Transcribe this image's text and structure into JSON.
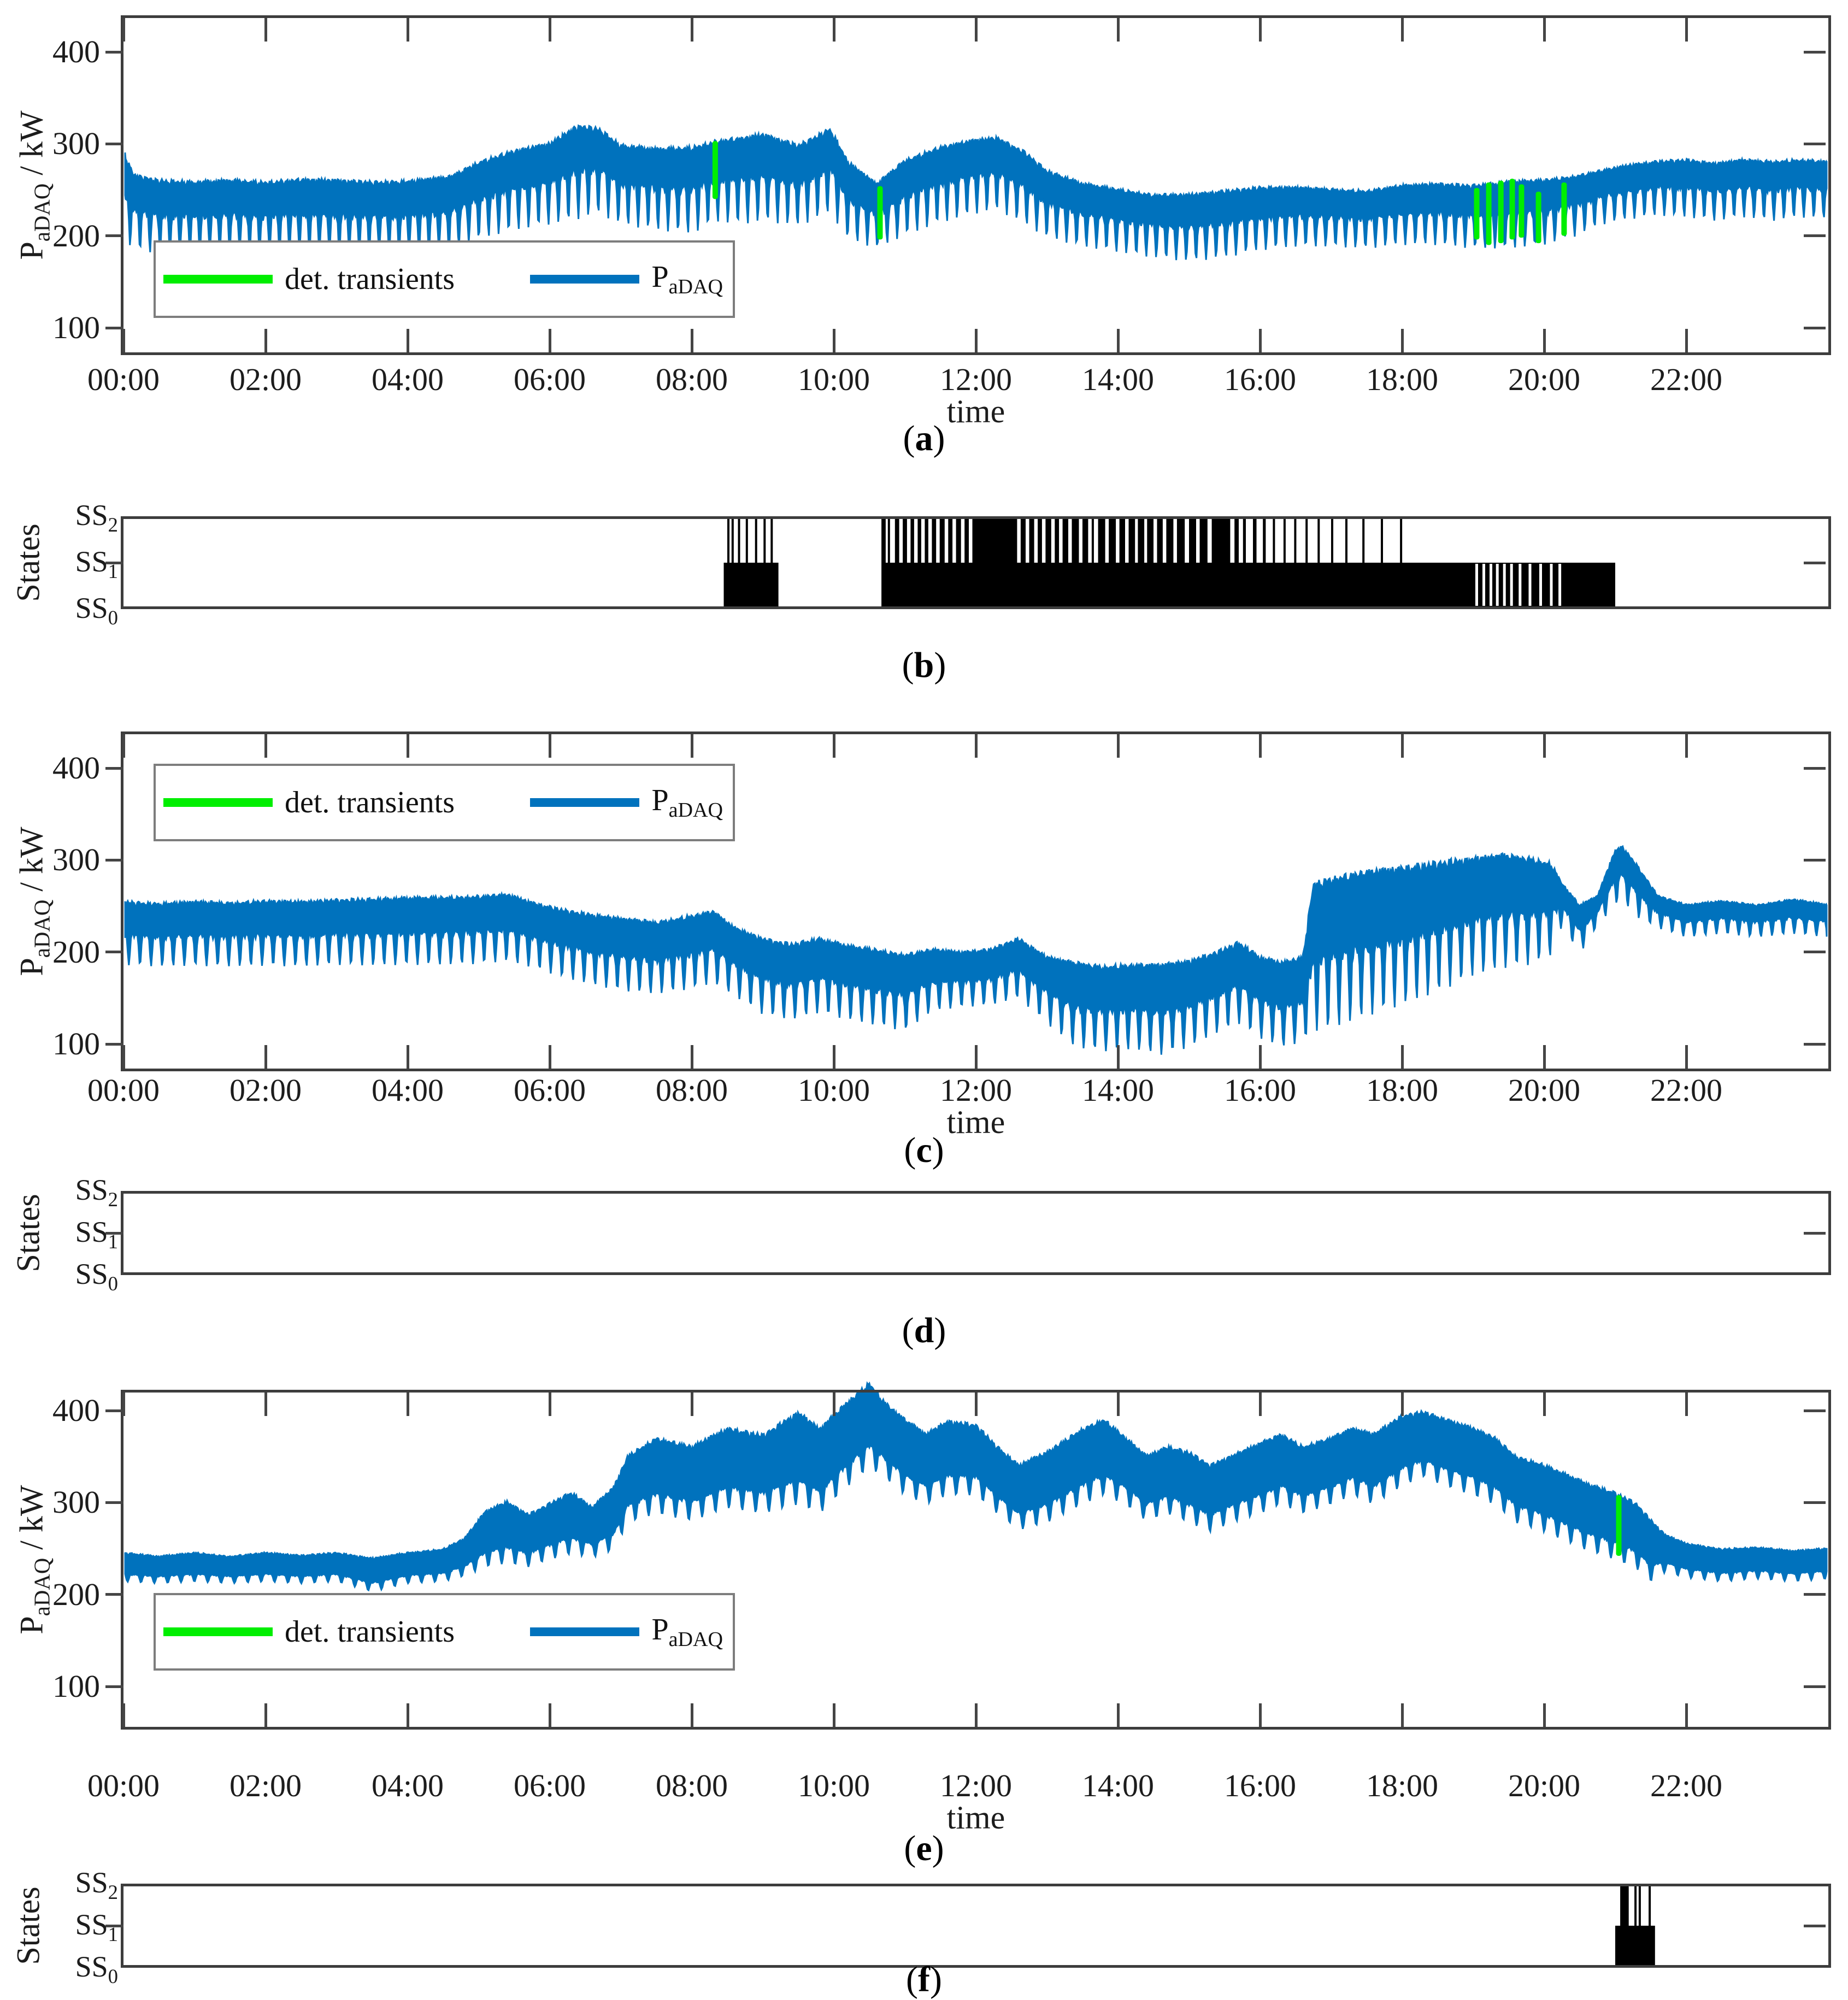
{
  "time_axis": {
    "label": "time",
    "tick_hours": [
      0,
      2,
      4,
      6,
      8,
      10,
      12,
      14,
      16,
      18,
      20,
      22
    ],
    "tick_labels": [
      "00:00",
      "02:00",
      "04:00",
      "06:00",
      "08:00",
      "10:00",
      "12:00",
      "14:00",
      "16:00",
      "18:00",
      "20:00",
      "22:00"
    ],
    "range_hours": [
      0,
      24
    ]
  },
  "power_axis": {
    "label_main": "P",
    "label_sub": "aDAQ",
    "label_rest": " / kW",
    "ticks": [
      400,
      300,
      200,
      100
    ],
    "ylim": [
      70,
      440
    ]
  },
  "states_axis": {
    "label": "States",
    "levels": [
      {
        "base": "SS",
        "sub": "2"
      },
      {
        "base": "SS",
        "sub": "1"
      },
      {
        "base": "SS",
        "sub": "0"
      }
    ]
  },
  "legend": {
    "transients_label": "det. transients",
    "signal_main": "P",
    "signal_sub": "aDAQ"
  },
  "colors": {
    "signal_blue": "#0072BD",
    "transient_green": "#00EE00",
    "state_black": "#000000",
    "axis_gray": "#3d3d3d"
  },
  "chart_data": [
    {
      "id": "a",
      "type": "line",
      "caption": "a",
      "legend_position": "bottom-left",
      "ylabel": "P_aDAQ / kW",
      "xlabel": "time",
      "grid": false,
      "band_fill": 0.45,
      "comb_freq": 44.8,
      "envelope": [
        [
          0,
          195,
          292
        ],
        [
          0.15,
          185,
          268
        ],
        [
          0.5,
          180,
          262
        ],
        [
          1,
          180,
          260
        ],
        [
          1.5,
          182,
          262
        ],
        [
          2,
          180,
          260
        ],
        [
          2.5,
          182,
          263
        ],
        [
          3,
          180,
          262
        ],
        [
          3.5,
          181,
          260
        ],
        [
          4,
          180,
          261
        ],
        [
          4.6,
          184,
          266
        ],
        [
          5,
          196,
          282
        ],
        [
          5.5,
          206,
          294
        ],
        [
          6,
          212,
          302
        ],
        [
          6.4,
          218,
          322
        ],
        [
          6.7,
          224,
          318
        ],
        [
          7,
          212,
          300
        ],
        [
          7.5,
          206,
          296
        ],
        [
          8,
          202,
          298
        ],
        [
          8.35,
          215,
          305
        ],
        [
          8.7,
          212,
          308
        ],
        [
          9,
          216,
          312
        ],
        [
          9.5,
          210,
          300
        ],
        [
          9.95,
          225,
          318
        ],
        [
          10.2,
          196,
          282
        ],
        [
          10.6,
          186,
          258
        ],
        [
          11,
          200,
          284
        ],
        [
          11.5,
          214,
          298
        ],
        [
          12,
          224,
          306
        ],
        [
          12.3,
          228,
          308
        ],
        [
          12.7,
          212,
          292
        ],
        [
          13,
          198,
          272
        ],
        [
          13.5,
          188,
          258
        ],
        [
          14,
          182,
          252
        ],
        [
          14.5,
          176,
          246
        ],
        [
          15,
          172,
          246
        ],
        [
          15.5,
          176,
          250
        ],
        [
          16,
          184,
          254
        ],
        [
          16.5,
          188,
          254
        ],
        [
          17,
          188,
          252
        ],
        [
          17.5,
          186,
          250
        ],
        [
          18,
          190,
          256
        ],
        [
          18.5,
          190,
          258
        ],
        [
          19,
          186,
          256
        ],
        [
          19.5,
          186,
          260
        ],
        [
          20,
          190,
          262
        ],
        [
          20.4,
          198,
          266
        ],
        [
          20.8,
          212,
          272
        ],
        [
          21.2,
          218,
          278
        ],
        [
          21.6,
          222,
          282
        ],
        [
          22,
          220,
          284
        ],
        [
          22.4,
          216,
          280
        ],
        [
          22.8,
          220,
          284
        ],
        [
          23.2,
          216,
          282
        ],
        [
          23.6,
          220,
          284
        ],
        [
          24,
          218,
          282
        ]
      ],
      "transients": [
        [
          8.33,
          240,
          303
        ],
        [
          10.65,
          196,
          254
        ],
        [
          19.05,
          196,
          252
        ],
        [
          19.22,
          190,
          258
        ],
        [
          19.39,
          192,
          260
        ],
        [
          19.55,
          196,
          262
        ],
        [
          19.68,
          198,
          256
        ],
        [
          19.92,
          192,
          248
        ],
        [
          20.28,
          200,
          258
        ]
      ]
    },
    {
      "id": "b",
      "type": "state-timeline",
      "caption": "b",
      "ss1_intervals": [
        [
          8.45,
          9.22
        ],
        [
          10.67,
          21.0
        ]
      ],
      "ss1_gap_lines": [
        19.05,
        19.15,
        19.25,
        19.34,
        19.44,
        19.54,
        19.66,
        19.8,
        19.95,
        20.1,
        20.22
      ],
      "ss2_intervals": [
        [
          8.5,
          8.52
        ],
        [
          8.56,
          8.58
        ],
        [
          8.65,
          8.67
        ],
        [
          8.76,
          8.78
        ],
        [
          8.89,
          8.91
        ],
        [
          9.01,
          9.03
        ],
        [
          9.11,
          9.13
        ],
        [
          10.67,
          10.73
        ],
        [
          10.76,
          10.79
        ],
        [
          10.86,
          10.92
        ],
        [
          10.97,
          11.03
        ],
        [
          11.08,
          11.13
        ],
        [
          11.18,
          11.23
        ],
        [
          11.28,
          11.33
        ],
        [
          11.38,
          11.44
        ],
        [
          11.49,
          11.56
        ],
        [
          11.61,
          11.67
        ],
        [
          11.72,
          11.79
        ],
        [
          11.84,
          11.9
        ],
        [
          11.95,
          12.58
        ],
        [
          12.63,
          12.7
        ],
        [
          12.75,
          12.82
        ],
        [
          12.87,
          12.93
        ],
        [
          12.98,
          13.06
        ],
        [
          13.11,
          13.17
        ],
        [
          13.22,
          13.3
        ],
        [
          13.35,
          13.45
        ],
        [
          13.5,
          13.58
        ],
        [
          13.63,
          13.66
        ],
        [
          13.72,
          13.82
        ],
        [
          13.87,
          13.97
        ],
        [
          14.02,
          14.1
        ],
        [
          14.15,
          14.24
        ],
        [
          14.28,
          14.37
        ],
        [
          14.41,
          14.5
        ],
        [
          14.55,
          14.63
        ],
        [
          14.68,
          14.78
        ],
        [
          14.83,
          14.94
        ],
        [
          15.0,
          15.1
        ],
        [
          15.15,
          15.26
        ],
        [
          15.32,
          15.58
        ],
        [
          15.64,
          15.7
        ],
        [
          15.76,
          15.8
        ],
        [
          15.9,
          15.95
        ],
        [
          16.04,
          16.08
        ],
        [
          16.18,
          16.21
        ],
        [
          16.33,
          16.35
        ],
        [
          16.48,
          16.5
        ],
        [
          16.64,
          16.66
        ],
        [
          16.81,
          16.83
        ],
        [
          17.0,
          17.02
        ],
        [
          17.2,
          17.22
        ],
        [
          17.44,
          17.46
        ],
        [
          17.7,
          17.72
        ],
        [
          17.97,
          17.99
        ]
      ]
    },
    {
      "id": "c",
      "type": "line",
      "caption": "c",
      "legend_position": "top-left",
      "ylabel": "P_aDAQ / kW",
      "xlabel": "time",
      "grid": false,
      "band_fill": 0.5,
      "comb_freq": 40.2,
      "envelope": [
        [
          0,
          186,
          256
        ],
        [
          0.5,
          184,
          254
        ],
        [
          1,
          185,
          256
        ],
        [
          1.5,
          184,
          255
        ],
        [
          2,
          185,
          257
        ],
        [
          2.5,
          184,
          256
        ],
        [
          3,
          186,
          258
        ],
        [
          3.5,
          185,
          259
        ],
        [
          4,
          186,
          260
        ],
        [
          4.5,
          186,
          261
        ],
        [
          5,
          187,
          262
        ],
        [
          5.4,
          190,
          264
        ],
        [
          5.8,
          182,
          254
        ],
        [
          6.2,
          172,
          247
        ],
        [
          6.6,
          164,
          242
        ],
        [
          7,
          158,
          238
        ],
        [
          7.5,
          154,
          234
        ],
        [
          8,
          160,
          241
        ],
        [
          8.3,
          166,
          246
        ],
        [
          8.6,
          152,
          228
        ],
        [
          9,
          132,
          216
        ],
        [
          9.4,
          126,
          210
        ],
        [
          9.8,
          134,
          216
        ],
        [
          10.2,
          126,
          208
        ],
        [
          10.6,
          120,
          204
        ],
        [
          11,
          114,
          199
        ],
        [
          11.4,
          136,
          204
        ],
        [
          11.8,
          140,
          201
        ],
        [
          12.2,
          142,
          204
        ],
        [
          12.6,
          150,
          216
        ],
        [
          13,
          122,
          196
        ],
        [
          13.4,
          96,
          190
        ],
        [
          13.8,
          92,
          186
        ],
        [
          14.2,
          94,
          188
        ],
        [
          14.6,
          88,
          188
        ],
        [
          15,
          96,
          192
        ],
        [
          15.4,
          112,
          202
        ],
        [
          15.7,
          122,
          212
        ],
        [
          16,
          106,
          196
        ],
        [
          16.3,
          96,
          190
        ],
        [
          16.6,
          102,
          196
        ],
        [
          16.75,
          114,
          278
        ],
        [
          17,
          116,
          284
        ],
        [
          17.5,
          130,
          290
        ],
        [
          18,
          142,
          294
        ],
        [
          18.5,
          156,
          300
        ],
        [
          19,
          174,
          304
        ],
        [
          19.4,
          182,
          308
        ],
        [
          19.8,
          186,
          304
        ],
        [
          20.1,
          196,
          298
        ],
        [
          20.25,
          228,
          276
        ],
        [
          20.5,
          198,
          252
        ],
        [
          20.75,
          228,
          262
        ],
        [
          21,
          252,
          312
        ],
        [
          21.1,
          256,
          316
        ],
        [
          21.3,
          238,
          296
        ],
        [
          21.6,
          226,
          262
        ],
        [
          22,
          216,
          252
        ],
        [
          22.5,
          220,
          256
        ],
        [
          23,
          216,
          252
        ],
        [
          23.5,
          220,
          258
        ],
        [
          24,
          216,
          252
        ]
      ],
      "transients": []
    },
    {
      "id": "d",
      "type": "state-timeline",
      "caption": "d",
      "ss1_intervals": [],
      "ss1_gap_lines": [],
      "ss2_intervals": []
    },
    {
      "id": "e",
      "type": "line",
      "caption": "e",
      "legend_position": "bottom-left",
      "ylabel": "P_aDAQ / kW",
      "xlabel": "time",
      "grid": false,
      "band_fill": 0.72,
      "comb_freq": 33.4,
      "envelope": [
        [
          0,
          214,
          246
        ],
        [
          0.5,
          212,
          242
        ],
        [
          1,
          214,
          246
        ],
        [
          1.5,
          212,
          242
        ],
        [
          2,
          214,
          246
        ],
        [
          2.5,
          212,
          243
        ],
        [
          3,
          214,
          246
        ],
        [
          3.5,
          203,
          240
        ],
        [
          4,
          212,
          246
        ],
        [
          4.5,
          214,
          250
        ],
        [
          4.8,
          220,
          262
        ],
        [
          5.1,
          230,
          292
        ],
        [
          5.4,
          234,
          302
        ],
        [
          5.7,
          230,
          288
        ],
        [
          6,
          238,
          300
        ],
        [
          6.3,
          244,
          312
        ],
        [
          6.6,
          240,
          296
        ],
        [
          6.9,
          248,
          318
        ],
        [
          7.1,
          278,
          352
        ],
        [
          7.5,
          288,
          372
        ],
        [
          8,
          280,
          362
        ],
        [
          8.5,
          294,
          382
        ],
        [
          9,
          288,
          375
        ],
        [
          9.5,
          298,
          400
        ],
        [
          9.8,
          288,
          382
        ],
        [
          10.2,
          318,
          412
        ],
        [
          10.5,
          338,
          432
        ],
        [
          10.7,
          328,
          412
        ],
        [
          11,
          308,
          392
        ],
        [
          11.3,
          298,
          376
        ],
        [
          11.6,
          308,
          390
        ],
        [
          12,
          308,
          386
        ],
        [
          12.3,
          288,
          362
        ],
        [
          12.6,
          270,
          342
        ],
        [
          13,
          278,
          356
        ],
        [
          13.5,
          298,
          382
        ],
        [
          13.8,
          308,
          392
        ],
        [
          14.1,
          298,
          372
        ],
        [
          14.4,
          280,
          352
        ],
        [
          14.7,
          288,
          362
        ],
        [
          15,
          278,
          356
        ],
        [
          15.3,
          268,
          342
        ],
        [
          15.6,
          278,
          352
        ],
        [
          16,
          288,
          366
        ],
        [
          16.3,
          298,
          376
        ],
        [
          16.6,
          288,
          362
        ],
        [
          17,
          298,
          372
        ],
        [
          17.3,
          308,
          382
        ],
        [
          17.6,
          298,
          376
        ],
        [
          18,
          318,
          396
        ],
        [
          18.3,
          328,
          400
        ],
        [
          18.6,
          318,
          392
        ],
        [
          19,
          308,
          382
        ],
        [
          19.3,
          298,
          372
        ],
        [
          19.6,
          278,
          352
        ],
        [
          20,
          268,
          342
        ],
        [
          20.3,
          258,
          332
        ],
        [
          20.6,
          248,
          322
        ],
        [
          21,
          238,
          312
        ],
        [
          21.3,
          228,
          300
        ],
        [
          21.5,
          214,
          282
        ],
        [
          21.7,
          224,
          266
        ],
        [
          22,
          218,
          256
        ],
        [
          22.5,
          214,
          250
        ],
        [
          23,
          217,
          252
        ],
        [
          23.5,
          214,
          248
        ],
        [
          24,
          217,
          251
        ]
      ],
      "transients": [
        [
          21.05,
          242,
          308
        ]
      ]
    },
    {
      "id": "f",
      "type": "state-timeline",
      "caption": "f",
      "ss1_intervals": [
        [
          21.0,
          21.56
        ]
      ],
      "ss1_gap_lines": [],
      "ss2_intervals": [
        [
          21.07,
          21.19
        ],
        [
          21.27,
          21.29
        ],
        [
          21.33,
          21.35
        ],
        [
          21.47,
          21.48
        ]
      ]
    }
  ]
}
